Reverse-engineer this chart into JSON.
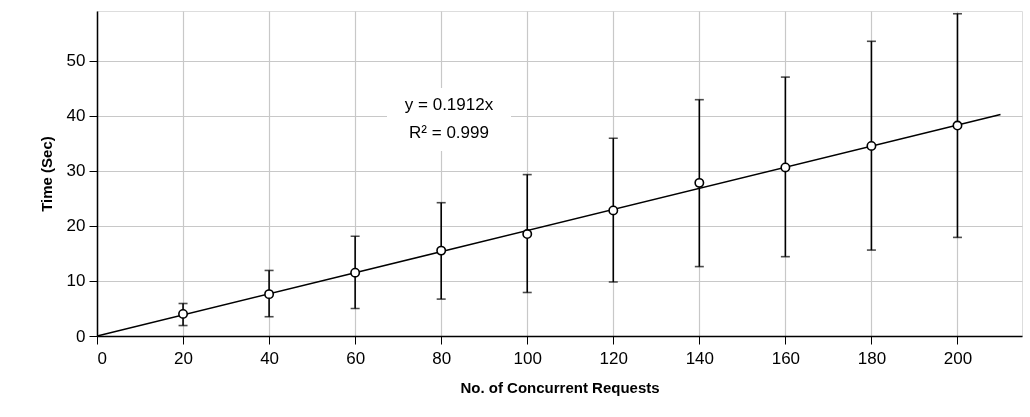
{
  "chart_data": {
    "type": "scatter",
    "xlabel": "No. of Concurrent Requests",
    "ylabel": "Time (Sec)",
    "annotations": [
      "y = 0.1912x",
      "R² = 0.999"
    ],
    "series": [
      {
        "marker": "circle",
        "color": "#000000",
        "x": [
          20,
          40,
          60,
          80,
          100,
          120,
          140,
          160,
          180,
          200
        ],
        "values": [
          4.0,
          7.6,
          11.5,
          15.5,
          18.5,
          22.8,
          27.8,
          30.6,
          34.5,
          38.2
        ],
        "errors": [
          [
            1.9,
            5.9
          ],
          [
            3.5,
            11.9
          ],
          [
            5.0,
            18.1
          ],
          [
            6.7,
            24.2
          ],
          [
            7.9,
            29.3
          ],
          [
            9.8,
            35.9
          ],
          [
            12.6,
            42.9
          ],
          [
            14.4,
            47.0
          ],
          [
            15.6,
            53.5
          ],
          [
            17.9,
            58.5
          ]
        ]
      },
      {
        "type": "line",
        "marker": "none",
        "color": "#000000",
        "x": [
          0,
          210
        ],
        "values": [
          0,
          40.2
        ]
      }
    ],
    "xlim": [
      0,
      215
    ],
    "xticks": [
      0,
      20,
      40,
      60,
      80,
      100,
      120,
      140,
      160,
      180,
      200
    ],
    "ylim": [
      0,
      59
    ],
    "yticks": [
      0,
      10,
      20,
      30,
      40,
      50
    ],
    "grid": true,
    "line_style": "solid"
  }
}
